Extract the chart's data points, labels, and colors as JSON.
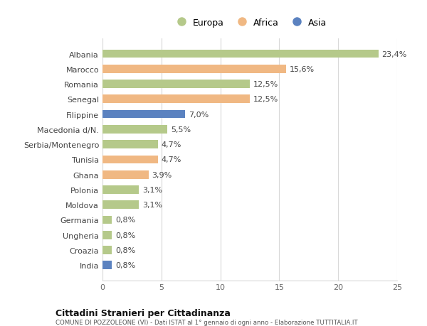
{
  "categories": [
    "Albania",
    "Marocco",
    "Romania",
    "Senegal",
    "Filippine",
    "Macedonia d/N.",
    "Serbia/Montenegro",
    "Tunisia",
    "Ghana",
    "Polonia",
    "Moldova",
    "Germania",
    "Ungheria",
    "Croazia",
    "India"
  ],
  "values": [
    23.4,
    15.6,
    12.5,
    12.5,
    7.0,
    5.5,
    4.7,
    4.7,
    3.9,
    3.1,
    3.1,
    0.8,
    0.8,
    0.8,
    0.8
  ],
  "labels": [
    "23,4%",
    "15,6%",
    "12,5%",
    "12,5%",
    "7,0%",
    "5,5%",
    "4,7%",
    "4,7%",
    "3,9%",
    "3,1%",
    "3,1%",
    "0,8%",
    "0,8%",
    "0,8%",
    "0,8%"
  ],
  "continents": [
    "Europa",
    "Africa",
    "Europa",
    "Africa",
    "Asia",
    "Europa",
    "Europa",
    "Africa",
    "Africa",
    "Europa",
    "Europa",
    "Europa",
    "Europa",
    "Europa",
    "Asia"
  ],
  "colors": {
    "Europa": "#b5c98a",
    "Africa": "#f0b883",
    "Asia": "#5b82c0"
  },
  "xlim": [
    0,
    25
  ],
  "xticks": [
    0,
    5,
    10,
    15,
    20,
    25
  ],
  "title_main": "Cittadini Stranieri per Cittadinanza",
  "title_sub": "COMUNE DI POZZOLEONE (VI) - Dati ISTAT al 1° gennaio di ogni anno - Elaborazione TUTTITALIA.IT",
  "background_color": "#ffffff",
  "grid_color": "#d8d8d8",
  "label_fontsize": 8.0,
  "tick_fontsize": 8.0,
  "value_fontsize": 8.0,
  "legend_fontsize": 9.0,
  "bar_height": 0.55
}
